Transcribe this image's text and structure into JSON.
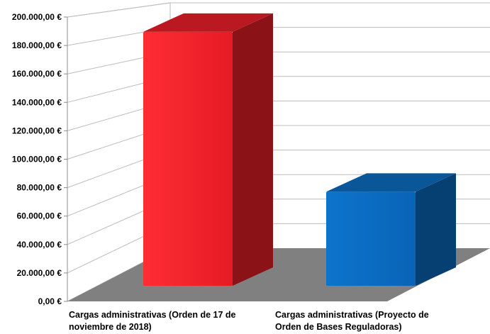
{
  "chart_data": {
    "type": "bar",
    "categories": [
      "Cargas administrativas (Orden de 17 de noviembre de 2018)",
      "Cargas administrativas (Proyecto de Orden de Bases Reguladoras)"
    ],
    "category_label_lines": [
      [
        "Cargas administrativas (Orden de 17 de",
        "noviembre de 2018)"
      ],
      [
        "Cargas administrativas (Proyecto de",
        "Orden de Bases Reguladoras)"
      ]
    ],
    "values": [
      189000,
      70000
    ],
    "colors": [
      "#f0202a",
      "#0b6ec4"
    ],
    "y_ticks": [
      "0,00 €",
      "20.000,00 €",
      "40.000,00 €",
      "60.000,00 €",
      "80.000,00 €",
      "100.000,00 €",
      "120.000,00 €",
      "140.000,00 €",
      "160.000,00 €",
      "180.000,00 €",
      "200.000,00 €"
    ],
    "ylim": [
      0,
      200000
    ],
    "title": "",
    "xlabel": "",
    "ylabel": "",
    "grid": true,
    "style": "3d-column",
    "floor_color": "#808080"
  }
}
